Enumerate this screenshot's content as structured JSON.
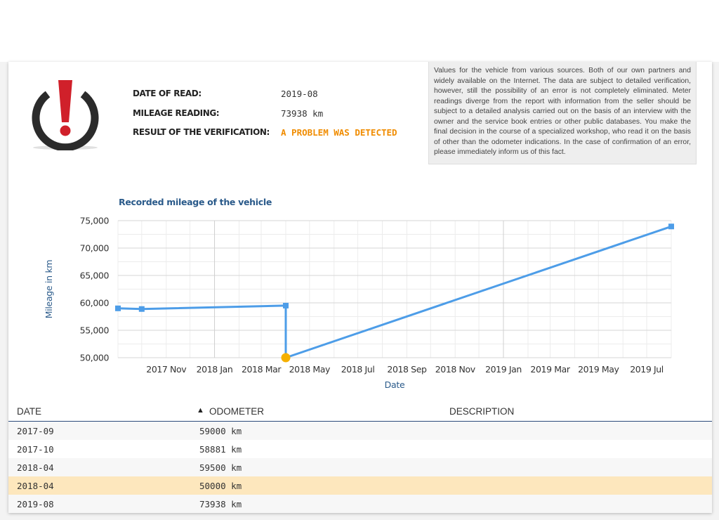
{
  "info": {
    "date_label": "DATE OF READ:",
    "date_value": "2019-08",
    "mileage_label": "MILEAGE READING:",
    "mileage_value": "73938 km",
    "result_label": "RESULT OF THE VERIFICATION:",
    "result_value": "A PROBLEM WAS DETECTED",
    "icon": "warning-exclamation-icon"
  },
  "notice": "Values for the vehicle from various sources. Both of our own partners and widely available on the Internet. The data are subject to detailed verification, however, still the possibility of an error is not completely eliminated. Meter readings diverge from the report with information from the seller should be subject to a detailed analysis carried out on the basis of an interview with the owner and the service book entries or other public databases. You make the final decision in the course of a specialized workshop, who read it on the basis of other than the odometer indications. In the case of confirmation of an error, please immediately inform us of this fact.",
  "chart_data": {
    "type": "line",
    "title": "Recorded mileage of the vehicle",
    "xlabel": "Date",
    "ylabel": "Mileage in km",
    "ylim": [
      50000,
      75000
    ],
    "yticks": [
      "50,000",
      "55,000",
      "60,000",
      "65,000",
      "70,000",
      "75,000"
    ],
    "xticks": [
      "2017 Nov",
      "2018 Jan",
      "2018 Mar",
      "2018 May",
      "2018 Jul",
      "2018 Sep",
      "2018 Nov",
      "2019 Jan",
      "2019 Mar",
      "2019 May",
      "2019 Jul"
    ],
    "grid": true,
    "line_color": "#4d9de8",
    "anomaly_color": "#f5b000",
    "points": [
      {
        "x": "2017-09-01",
        "y": 59000
      },
      {
        "x": "2017-10-01",
        "y": 58881
      },
      {
        "x": "2018-04-01",
        "y": 59500
      },
      {
        "x": "2018-04-01",
        "y": 50000,
        "anomaly": true
      },
      {
        "x": "2019-08-01",
        "y": 73938
      }
    ]
  },
  "table": {
    "headers": {
      "date": "DATE",
      "odometer": "ODOMETER",
      "description": "DESCRIPTION"
    },
    "sort_icon": "sort-up-icon",
    "highlight_color": "#fde7bd",
    "rows": [
      {
        "date": "2017-09",
        "odometer": "59000 km",
        "description": ""
      },
      {
        "date": "2017-10",
        "odometer": "58881 km",
        "description": ""
      },
      {
        "date": "2018-04",
        "odometer": "59500 km",
        "description": ""
      },
      {
        "date": "2018-04",
        "odometer": "50000 km",
        "description": "",
        "highlight": true
      },
      {
        "date": "2019-08",
        "odometer": "73938 km",
        "description": ""
      }
    ]
  }
}
